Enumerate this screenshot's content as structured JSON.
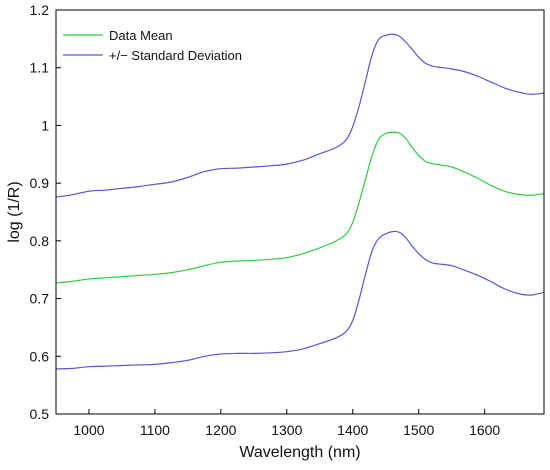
{
  "chart_data": {
    "type": "line",
    "xlabel": "Wavelength (nm)",
    "ylabel": "log (1/R)",
    "xlim": [
      950,
      1690
    ],
    "ylim": [
      0.5,
      1.2
    ],
    "xticks": [
      1000,
      1100,
      1200,
      1300,
      1400,
      1500,
      1600
    ],
    "xtick_labels": [
      "1000",
      "1100",
      "1200",
      "1300",
      "1400",
      "1500",
      "1600"
    ],
    "yticks": [
      0.5,
      0.6,
      0.7,
      0.8,
      0.9,
      1.0,
      1.1,
      1.2
    ],
    "ytick_labels": [
      "0.5",
      "0.6",
      "0.7",
      "0.8",
      "0.9",
      "1",
      "1.1",
      "1.2"
    ],
    "grid": false,
    "legend_position": "top-left",
    "legend": [
      {
        "label": "Data Mean",
        "color": "#2ecc40"
      },
      {
        "label": "+/− Standard Deviation",
        "color": "#5a55d6"
      }
    ],
    "x": [
      950,
      975,
      1000,
      1025,
      1050,
      1075,
      1100,
      1125,
      1150,
      1175,
      1200,
      1225,
      1250,
      1275,
      1300,
      1325,
      1350,
      1375,
      1390,
      1400,
      1410,
      1420,
      1430,
      1440,
      1450,
      1460,
      1470,
      1480,
      1490,
      1500,
      1510,
      1520,
      1530,
      1550,
      1570,
      1590,
      1610,
      1630,
      1650,
      1670,
      1690
    ],
    "series": [
      {
        "role": "upper",
        "legend_index": 1,
        "color": "#5a55d6",
        "values": [
          0.876,
          0.88,
          0.886,
          0.888,
          0.891,
          0.894,
          0.898,
          0.902,
          0.91,
          0.92,
          0.925,
          0.926,
          0.928,
          0.93,
          0.933,
          0.94,
          0.951,
          0.962,
          0.975,
          0.998,
          1.035,
          1.08,
          1.125,
          1.15,
          1.156,
          1.158,
          1.155,
          1.145,
          1.132,
          1.118,
          1.108,
          1.103,
          1.101,
          1.098,
          1.093,
          1.085,
          1.075,
          1.065,
          1.058,
          1.054,
          1.056
        ]
      },
      {
        "role": "mean",
        "legend_index": 0,
        "color": "#2ecc40",
        "values": [
          0.727,
          0.73,
          0.734,
          0.736,
          0.738,
          0.74,
          0.742,
          0.745,
          0.75,
          0.757,
          0.763,
          0.765,
          0.766,
          0.768,
          0.771,
          0.778,
          0.788,
          0.8,
          0.812,
          0.832,
          0.868,
          0.91,
          0.95,
          0.977,
          0.986,
          0.988,
          0.987,
          0.978,
          0.962,
          0.948,
          0.938,
          0.934,
          0.932,
          0.928,
          0.919,
          0.908,
          0.896,
          0.886,
          0.881,
          0.879,
          0.882
        ]
      },
      {
        "role": "lower",
        "legend_index": 1,
        "color": "#5a55d6",
        "values": [
          0.578,
          0.579,
          0.582,
          0.583,
          0.584,
          0.585,
          0.586,
          0.589,
          0.593,
          0.6,
          0.604,
          0.605,
          0.605,
          0.606,
          0.608,
          0.613,
          0.622,
          0.632,
          0.643,
          0.662,
          0.7,
          0.745,
          0.785,
          0.805,
          0.812,
          0.816,
          0.815,
          0.806,
          0.791,
          0.778,
          0.768,
          0.762,
          0.76,
          0.757,
          0.749,
          0.74,
          0.729,
          0.717,
          0.709,
          0.706,
          0.711
        ]
      }
    ]
  }
}
